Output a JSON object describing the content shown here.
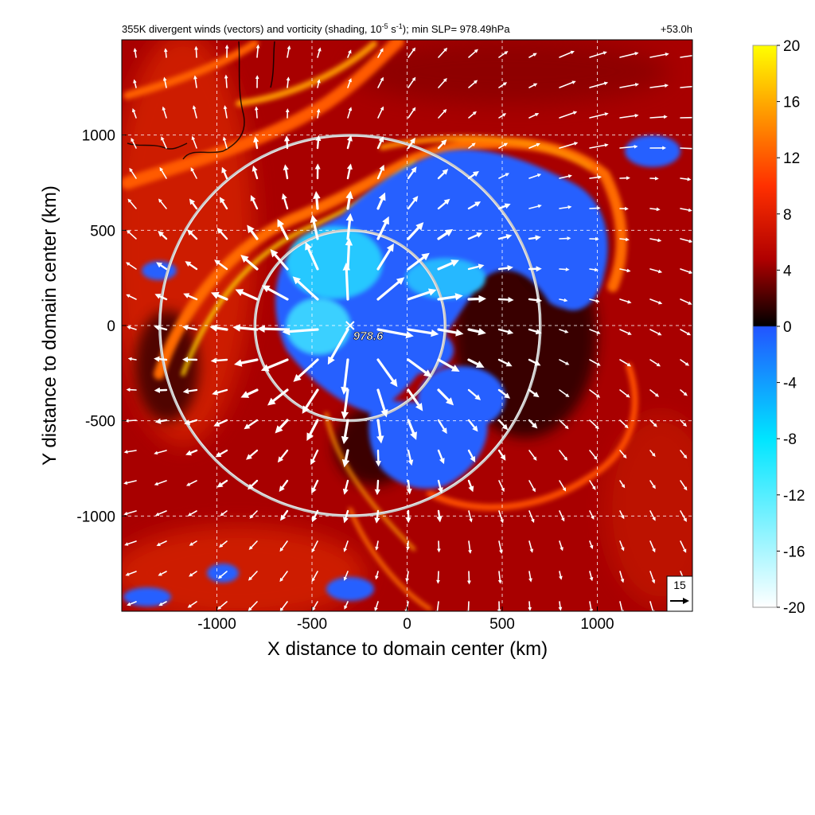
{
  "chart_data": {
    "type": "heatmap",
    "title": "355K divergent winds (vectors) and vorticity (shading, 10",
    "title_exp": "-5",
    "title_unit_s": " s",
    "title_exp2": "-1",
    "title_tail": "); min SLP= 978.49hPa",
    "lead_time": "+53.0h",
    "xlabel": "X distance to domain center (km)",
    "ylabel": "Y distance to domain center (km)",
    "xlim": [
      -1500,
      1500
    ],
    "ylim": [
      -1500,
      1500
    ],
    "x_ticks": [
      -1000,
      -500,
      0,
      500,
      1000
    ],
    "y_ticks": [
      -1000,
      -500,
      0,
      500,
      1000
    ],
    "x_tick_labels": [
      "-1000",
      "-500",
      "0",
      "500",
      "1000"
    ],
    "y_tick_labels": [
      "-1000",
      "-500",
      "0",
      "500",
      "1000"
    ],
    "grid": true,
    "colorbar": {
      "min": -20,
      "max": 20,
      "ticks": [
        20,
        16,
        12,
        8,
        4,
        0,
        -4,
        -8,
        -12,
        -16,
        -20
      ],
      "tick_labels": [
        "20",
        "16",
        "12",
        "8",
        "4",
        "0",
        "-4",
        "-8",
        "-12",
        "-16",
        "-20"
      ],
      "colors": {
        "pos_low": "#000000",
        "pos_mid": "#b00000",
        "pos_high": "#ff3000",
        "pos_orange": "#ff9000",
        "pos_top": "#ffff00",
        "neg_top": "#2255ff",
        "neg_mid": "#00e5ff",
        "neg_low": "#ffffff"
      }
    },
    "center_marker": {
      "label": "978.6",
      "x": -300,
      "y": 0
    },
    "range_rings": [
      {
        "center_x": -300,
        "center_y": 0,
        "radius_km": 500
      },
      {
        "center_x": -300,
        "center_y": 0,
        "radius_km": 1000
      }
    ],
    "reference_vector": {
      "label": "15"
    },
    "accent_colors": {
      "vector": "#ffffff",
      "ring": "#c8c8c8",
      "grid": "#ffffff",
      "background": "#a80000"
    }
  }
}
